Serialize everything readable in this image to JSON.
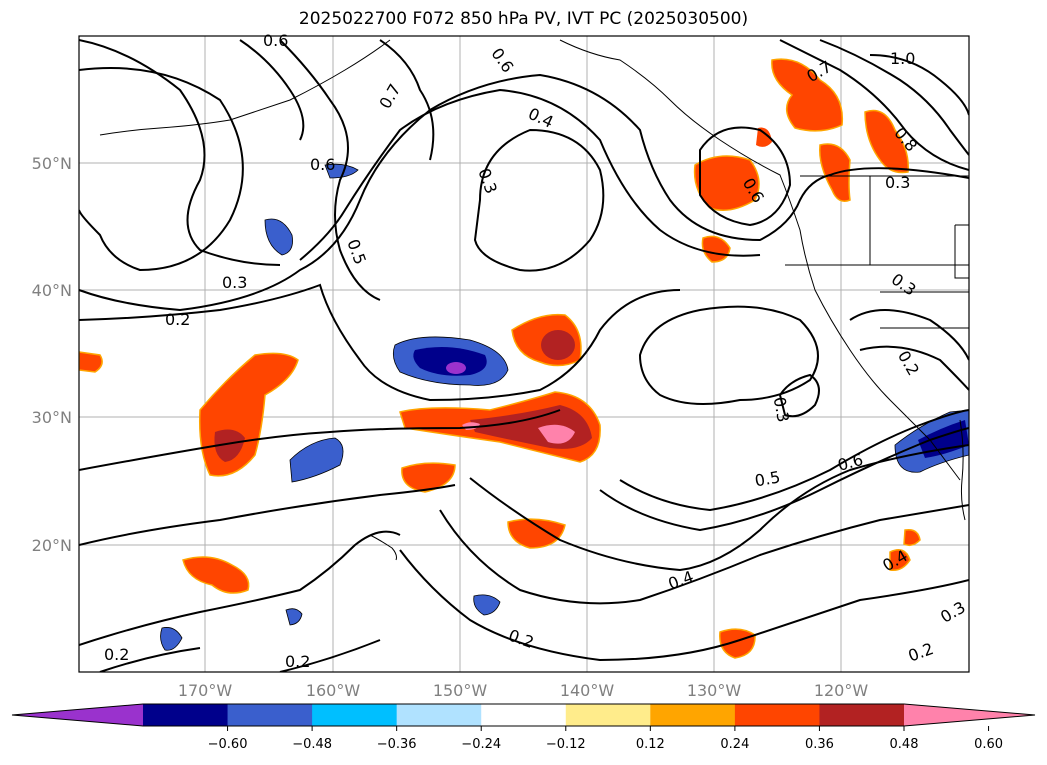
{
  "title": "2025022700 F072 850 hPa PV, IVT PC (2025030500)",
  "lat_ticks": [
    "50°N",
    "40°N",
    "30°N",
    "20°N"
  ],
  "lon_ticks": [
    "170°W",
    "160°W",
    "150°W",
    "140°W",
    "130°W",
    "120°W"
  ],
  "contour_labels": [
    "0.6",
    "0.7",
    "0.4",
    "0.3",
    "0.6",
    "0.5",
    "0.3",
    "0.2",
    "0.6",
    "0.7",
    "1.0",
    "0.8",
    "0.3",
    "0.6",
    "0.3",
    "0.2",
    "0.3",
    "0.5",
    "0.6",
    "0.4",
    "0.4",
    "0.2",
    "0.3",
    "0.2",
    "0.2",
    "0.2"
  ],
  "colorbar": {
    "ticks": [
      "−0.60",
      "−0.48",
      "−0.36",
      "−0.24",
      "−0.12",
      "0.12",
      "0.24",
      "0.36",
      "0.48",
      "0.60"
    ],
    "colors": [
      "#9a32cd",
      "#00008b",
      "#3a5fcd",
      "#00bfff",
      "#b0e2ff",
      "#ffffff",
      "#ffec8b",
      "#ffa500",
      "#ff4500",
      "#b22222",
      "#ff82ab"
    ]
  }
}
